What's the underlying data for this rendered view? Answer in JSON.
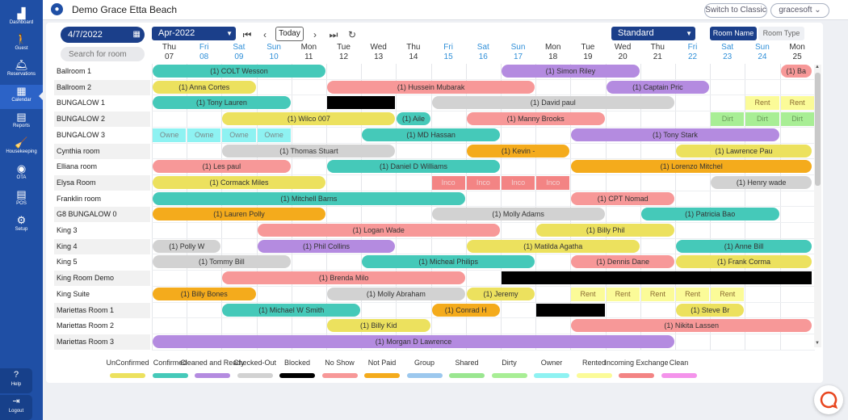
{
  "sidebar": {
    "items": [
      {
        "name": "dashboard",
        "label": "Dashboard",
        "icon": "▟",
        "active": false
      },
      {
        "name": "guest",
        "label": "Guest",
        "icon": "🚶",
        "active": false
      },
      {
        "name": "reservations",
        "label": "Reservations",
        "icon": "🛎",
        "active": false
      },
      {
        "name": "calendar",
        "label": "Calendar",
        "icon": "▦",
        "active": true
      },
      {
        "name": "reports",
        "label": "Reports",
        "icon": "▤",
        "active": false
      },
      {
        "name": "housekeeping",
        "label": "Housekeeping",
        "icon": "🧹",
        "active": false
      },
      {
        "name": "ota",
        "label": "OTA",
        "icon": "◉",
        "active": false
      },
      {
        "name": "pos",
        "label": "POS",
        "icon": "▤",
        "active": false
      },
      {
        "name": "setup",
        "label": "Setup",
        "icon": "⚙",
        "active": false
      }
    ],
    "help_label": "Help",
    "logout_label": "Logout"
  },
  "header": {
    "property_name": "Demo Grace Etta Beach",
    "switch_label": "Switch to Classic",
    "user_label": "gracesoft ⌄"
  },
  "toolbar": {
    "date_value": "4/7/2022",
    "month_value": "Apr-2022",
    "today_label": "Today",
    "view_value": "Standard",
    "room_name_label": "Room Name",
    "room_type_label": "Room Type",
    "search_placeholder": "Search for room",
    "icons": {
      "first": "first-page-icon",
      "prev": "chevron-left-icon",
      "next": "chevron-right-icon",
      "last": "last-page-icon",
      "refresh": "refresh-icon",
      "calendar": "calendar-icon"
    }
  },
  "days": [
    {
      "dow": "Thu",
      "d": "07",
      "wk": false
    },
    {
      "dow": "Fri",
      "d": "08",
      "wk": true
    },
    {
      "dow": "Sat",
      "d": "09",
      "wk": true
    },
    {
      "dow": "Sun",
      "d": "10",
      "wk": true
    },
    {
      "dow": "Mon",
      "d": "11",
      "wk": false
    },
    {
      "dow": "Tue",
      "d": "12",
      "wk": false
    },
    {
      "dow": "Wed",
      "d": "13",
      "wk": false
    },
    {
      "dow": "Thu",
      "d": "14",
      "wk": false
    },
    {
      "dow": "Fri",
      "d": "15",
      "wk": true
    },
    {
      "dow": "Sat",
      "d": "16",
      "wk": true
    },
    {
      "dow": "Sun",
      "d": "17",
      "wk": true
    },
    {
      "dow": "Mon",
      "d": "18",
      "wk": false
    },
    {
      "dow": "Tue",
      "d": "19",
      "wk": false
    },
    {
      "dow": "Wed",
      "d": "20",
      "wk": false
    },
    {
      "dow": "Thu",
      "d": "21",
      "wk": false
    },
    {
      "dow": "Fri",
      "d": "22",
      "wk": true
    },
    {
      "dow": "Sat",
      "d": "23",
      "wk": true
    },
    {
      "dow": "Sun",
      "d": "24",
      "wk": true
    },
    {
      "dow": "Mon",
      "d": "25",
      "wk": false
    }
  ],
  "colors": {
    "unconfirmed": "#ece15e",
    "confirmed": "#45c9b9",
    "cleaned": "#b48be0",
    "checkedout": "#d2d2d2",
    "blocked": "#000000",
    "noshow": "#f79898",
    "notpaid": "#f4ab1c",
    "group": "#9cc8ee",
    "shared": "#9ae690",
    "dirty": "#a8ee95",
    "owner": "#8ef2f2",
    "rented": "#fbfb98",
    "incoming": "#f38484",
    "clean": "#f493eb",
    "weekend_text": "#2f8fd8",
    "accent": "#1f4fa5"
  },
  "rooms": [
    {
      "name": "Ballroom 1",
      "bars": [
        {
          "s": 0,
          "e": 5,
          "c": "confirmed",
          "t": "(1) COLT Wesson"
        },
        {
          "s": 10,
          "e": 14,
          "c": "cleaned",
          "t": "(1) Simon Riley"
        },
        {
          "s": 18,
          "e": 19,
          "c": "noshow",
          "t": "(1) Ba"
        }
      ],
      "cells": []
    },
    {
      "name": "Ballroom 2",
      "bars": [
        {
          "s": 0,
          "e": 3,
          "c": "unconfirmed",
          "t": "(1) Anna Cortes"
        },
        {
          "s": 5,
          "e": 11,
          "c": "noshow",
          "t": "(1) Hussein Mubarak"
        },
        {
          "s": 13,
          "e": 16,
          "c": "cleaned",
          "t": "(1) Captain Pric"
        }
      ],
      "cells": []
    },
    {
      "name": "BUNGALOW 1",
      "bars": [
        {
          "s": 0,
          "e": 4,
          "c": "confirmed",
          "t": "(1) Tony Lauren"
        },
        {
          "s": 5,
          "e": 7,
          "c": "blocked",
          "t": ""
        },
        {
          "s": 8,
          "e": 15,
          "c": "checkedout",
          "t": "(1) David paul"
        }
      ],
      "cells": [
        {
          "i": 17,
          "c": "rented",
          "t": "Rent"
        },
        {
          "i": 18,
          "c": "rented",
          "t": "Rent"
        }
      ]
    },
    {
      "name": "BUNGALOW 2",
      "bars": [
        {
          "s": 2,
          "e": 7,
          "c": "unconfirmed",
          "t": "(1) Wilco 007"
        },
        {
          "s": 7,
          "e": 8,
          "c": "confirmed",
          "t": "(1) Aile"
        },
        {
          "s": 9,
          "e": 13,
          "c": "noshow",
          "t": "(1) Manny Brooks"
        }
      ],
      "cells": [
        {
          "i": 16,
          "c": "dirty",
          "t": "Dirt"
        },
        {
          "i": 17,
          "c": "dirty",
          "t": "Dirt"
        },
        {
          "i": 18,
          "c": "dirty",
          "t": "Dirt"
        }
      ]
    },
    {
      "name": "BUNGALOW 3",
      "bars": [
        {
          "s": 6,
          "e": 10,
          "c": "confirmed",
          "t": "(1) MD Hassan"
        },
        {
          "s": 12,
          "e": 18,
          "c": "cleaned",
          "t": "(1) Tony Stark"
        }
      ],
      "cells": [
        {
          "i": 0,
          "c": "owner",
          "t": "Owne"
        },
        {
          "i": 1,
          "c": "owner",
          "t": "Owne"
        },
        {
          "i": 2,
          "c": "owner",
          "t": "Owne"
        },
        {
          "i": 3,
          "c": "owner",
          "t": "Owne"
        }
      ]
    },
    {
      "name": "Cynthia room",
      "bars": [
        {
          "s": 2,
          "e": 7,
          "c": "checkedout",
          "t": "(1) Thomas Stuart"
        },
        {
          "s": 9,
          "e": 12,
          "c": "notpaid",
          "t": "(1) Kevin -"
        },
        {
          "s": 15,
          "e": 19,
          "c": "unconfirmed",
          "t": "(1) Lawrence Pau"
        }
      ],
      "cells": []
    },
    {
      "name": "Elliana room",
      "bars": [
        {
          "s": 0,
          "e": 4,
          "c": "noshow",
          "t": "(1) Les paul"
        },
        {
          "s": 5,
          "e": 10,
          "c": "confirmed",
          "t": "(1) Daniel D Williams"
        },
        {
          "s": 12,
          "e": 19,
          "c": "notpaid",
          "t": "(1) Lorenzo Mitchel"
        }
      ],
      "cells": []
    },
    {
      "name": "Elysa Room",
      "bars": [
        {
          "s": 0,
          "e": 5,
          "c": "unconfirmed",
          "t": "(1) Cormack Miles"
        },
        {
          "s": 16,
          "e": 19,
          "c": "checkedout",
          "t": "(1) Henry wade"
        }
      ],
      "cells": [
        {
          "i": 8,
          "c": "incoming",
          "t": "Inco"
        },
        {
          "i": 9,
          "c": "incoming",
          "t": "Inco"
        },
        {
          "i": 10,
          "c": "incoming",
          "t": "Inco"
        },
        {
          "i": 11,
          "c": "incoming",
          "t": "Inco"
        }
      ]
    },
    {
      "name": "Franklin room",
      "bars": [
        {
          "s": 0,
          "e": 9,
          "c": "confirmed",
          "t": "(1) Mitchell Barns"
        },
        {
          "s": 12,
          "e": 15,
          "c": "noshow",
          "t": "(1) CPT Nomad"
        }
      ],
      "cells": []
    },
    {
      "name": "G8 BUNGALOW 0",
      "bars": [
        {
          "s": 0,
          "e": 5,
          "c": "notpaid",
          "t": "(1) Lauren Polly"
        },
        {
          "s": 8,
          "e": 13,
          "c": "checkedout",
          "t": "(1) Molly Adams"
        },
        {
          "s": 14,
          "e": 18,
          "c": "confirmed",
          "t": "(1) Patricia Bao"
        }
      ],
      "cells": []
    },
    {
      "name": "King 3",
      "bars": [
        {
          "s": 3,
          "e": 10,
          "c": "noshow",
          "t": "(1) Logan Wade"
        },
        {
          "s": 11,
          "e": 15,
          "c": "unconfirmed",
          "t": "(1) Billy Phil"
        }
      ],
      "cells": []
    },
    {
      "name": "King 4",
      "bars": [
        {
          "s": 0,
          "e": 2,
          "c": "checkedout",
          "t": "(1) Polly W"
        },
        {
          "s": 3,
          "e": 7,
          "c": "cleaned",
          "t": "(1) Phil Collins"
        },
        {
          "s": 9,
          "e": 14,
          "c": "unconfirmed",
          "t": "(1) Matilda Agatha"
        },
        {
          "s": 15,
          "e": 19,
          "c": "confirmed",
          "t": "(1) Anne Bill"
        }
      ],
      "cells": []
    },
    {
      "name": "King 5",
      "bars": [
        {
          "s": 0,
          "e": 4,
          "c": "checkedout",
          "t": "(1) Tommy Bill"
        },
        {
          "s": 6,
          "e": 11,
          "c": "confirmed",
          "t": "(1) Micheal Philips"
        },
        {
          "s": 12,
          "e": 15,
          "c": "noshow",
          "t": "(1) Dennis Dane"
        },
        {
          "s": 15,
          "e": 19,
          "c": "unconfirmed",
          "t": "(1) Frank Corma"
        }
      ],
      "cells": []
    },
    {
      "name": "King Room Demo",
      "bars": [
        {
          "s": 2,
          "e": 9,
          "c": "noshow",
          "t": "(1) Brenda Milo"
        },
        {
          "s": 10,
          "e": 19,
          "c": "blocked",
          "t": ""
        }
      ],
      "cells": []
    },
    {
      "name": "King Suite",
      "bars": [
        {
          "s": 0,
          "e": 3,
          "c": "notpaid",
          "t": "(1) Billy Bones"
        },
        {
          "s": 5,
          "e": 9,
          "c": "checkedout",
          "t": "(1) Molly Abraham"
        },
        {
          "s": 9,
          "e": 11,
          "c": "unconfirmed",
          "t": "(1) Jeremy"
        }
      ],
      "cells": [
        {
          "i": 12,
          "c": "rented",
          "t": "Rent"
        },
        {
          "i": 13,
          "c": "rented",
          "t": "Rent"
        },
        {
          "i": 14,
          "c": "rented",
          "t": "Rent"
        },
        {
          "i": 15,
          "c": "rented",
          "t": "Rent"
        },
        {
          "i": 16,
          "c": "rented",
          "t": "Rent"
        }
      ]
    },
    {
      "name": "Mariettas Room 1",
      "bars": [
        {
          "s": 2,
          "e": 6,
          "c": "confirmed",
          "t": "(1) Michael W Smith"
        },
        {
          "s": 8,
          "e": 10,
          "c": "notpaid",
          "t": "(1) Conrad H"
        },
        {
          "s": 11,
          "e": 13,
          "c": "blocked",
          "t": ""
        },
        {
          "s": 15,
          "e": 17,
          "c": "unconfirmed",
          "t": "(1) Steve Br"
        }
      ],
      "cells": []
    },
    {
      "name": "Mariettas Room 2",
      "bars": [
        {
          "s": 5,
          "e": 8,
          "c": "unconfirmed",
          "t": "(1) Billy Kid"
        },
        {
          "s": 12,
          "e": 19,
          "c": "noshow",
          "t": "(1) Nikita Lassen"
        }
      ],
      "cells": []
    },
    {
      "name": "Mariettas Room 3",
      "bars": [
        {
          "s": 0,
          "e": 15,
          "c": "cleaned",
          "t": "(1) Morgan D Lawrence"
        }
      ],
      "cells": []
    }
  ],
  "legend": [
    {
      "label": "UnConfirmed",
      "c": "unconfirmed"
    },
    {
      "label": "Confirmed",
      "c": "confirmed"
    },
    {
      "label": "Cleaned and Ready",
      "c": "cleaned"
    },
    {
      "label": "Checked-Out",
      "c": "checkedout"
    },
    {
      "label": "Blocked",
      "c": "blocked"
    },
    {
      "label": "No Show",
      "c": "noshow"
    },
    {
      "label": "Not Paid",
      "c": "notpaid"
    },
    {
      "label": "Group",
      "c": "group"
    },
    {
      "label": "Shared",
      "c": "shared"
    },
    {
      "label": "Dirty",
      "c": "dirty"
    },
    {
      "label": "Owner",
      "c": "owner"
    },
    {
      "label": "Rented",
      "c": "rented"
    },
    {
      "label": "Incoming Exchange",
      "c": "incoming"
    },
    {
      "label": "Clean",
      "c": "clean"
    }
  ]
}
